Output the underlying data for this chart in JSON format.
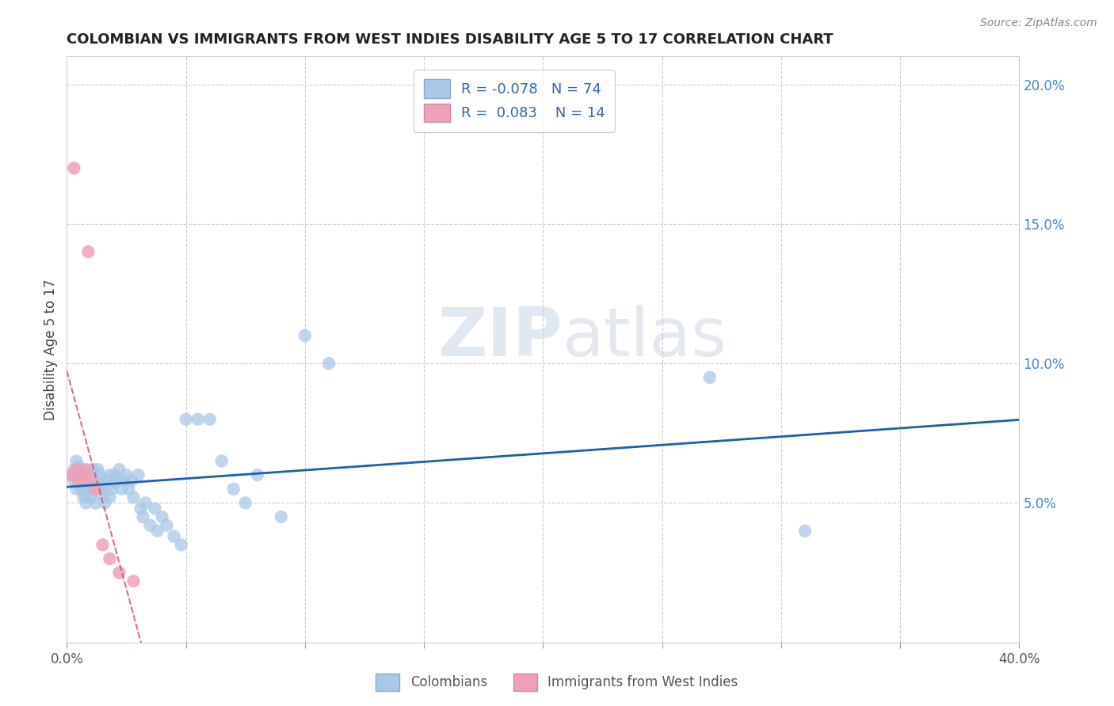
{
  "title": "COLOMBIAN VS IMMIGRANTS FROM WEST INDIES DISABILITY AGE 5 TO 17 CORRELATION CHART",
  "source": "Source: ZipAtlas.com",
  "ylabel": "Disability Age 5 to 17",
  "xlim": [
    0.0,
    0.4
  ],
  "ylim": [
    0.0,
    0.21
  ],
  "legend_R_blue": "-0.078",
  "legend_N_blue": "74",
  "legend_R_pink": "0.083",
  "legend_N_pink": "14",
  "blue_color": "#a8c8e8",
  "pink_color": "#f0a0b8",
  "blue_line_color": "#1a5fb0",
  "pink_line_color": "#d05070",
  "watermark_zip": "ZIP",
  "watermark_atlas": "atlas",
  "blue_scatter_x": [
    0.002,
    0.003,
    0.003,
    0.004,
    0.004,
    0.004,
    0.005,
    0.005,
    0.005,
    0.006,
    0.006,
    0.006,
    0.007,
    0.007,
    0.007,
    0.007,
    0.008,
    0.008,
    0.008,
    0.008,
    0.009,
    0.009,
    0.01,
    0.01,
    0.01,
    0.011,
    0.011,
    0.012,
    0.012,
    0.013,
    0.013,
    0.014,
    0.014,
    0.015,
    0.015,
    0.016,
    0.016,
    0.017,
    0.018,
    0.018,
    0.019,
    0.02,
    0.02,
    0.021,
    0.022,
    0.023,
    0.024,
    0.025,
    0.026,
    0.027,
    0.028,
    0.03,
    0.031,
    0.032,
    0.033,
    0.035,
    0.037,
    0.038,
    0.04,
    0.042,
    0.045,
    0.048,
    0.05,
    0.055,
    0.06,
    0.065,
    0.07,
    0.075,
    0.08,
    0.09,
    0.1,
    0.11,
    0.27,
    0.31
  ],
  "blue_scatter_y": [
    0.06,
    0.058,
    0.062,
    0.055,
    0.06,
    0.065,
    0.057,
    0.06,
    0.063,
    0.055,
    0.058,
    0.062,
    0.052,
    0.055,
    0.058,
    0.06,
    0.05,
    0.053,
    0.057,
    0.06,
    0.055,
    0.058,
    0.052,
    0.055,
    0.06,
    0.057,
    0.062,
    0.05,
    0.055,
    0.058,
    0.062,
    0.055,
    0.06,
    0.053,
    0.057,
    0.05,
    0.055,
    0.058,
    0.052,
    0.06,
    0.055,
    0.057,
    0.06,
    0.058,
    0.062,
    0.055,
    0.058,
    0.06,
    0.055,
    0.058,
    0.052,
    0.06,
    0.048,
    0.045,
    0.05,
    0.042,
    0.048,
    0.04,
    0.045,
    0.042,
    0.038,
    0.035,
    0.08,
    0.08,
    0.08,
    0.065,
    0.055,
    0.05,
    0.06,
    0.045,
    0.11,
    0.1,
    0.095,
    0.04
  ],
  "pink_scatter_x": [
    0.002,
    0.003,
    0.004,
    0.005,
    0.006,
    0.007,
    0.008,
    0.009,
    0.01,
    0.012,
    0.015,
    0.018,
    0.022,
    0.028
  ],
  "pink_scatter_y": [
    0.06,
    0.17,
    0.062,
    0.058,
    0.06,
    0.06,
    0.062,
    0.14,
    0.058,
    0.055,
    0.035,
    0.03,
    0.025,
    0.022
  ],
  "pink_line_x_start": 0.0,
  "pink_line_x_end": 0.038,
  "blue_line_x_start": 0.0,
  "blue_line_x_end": 0.4
}
